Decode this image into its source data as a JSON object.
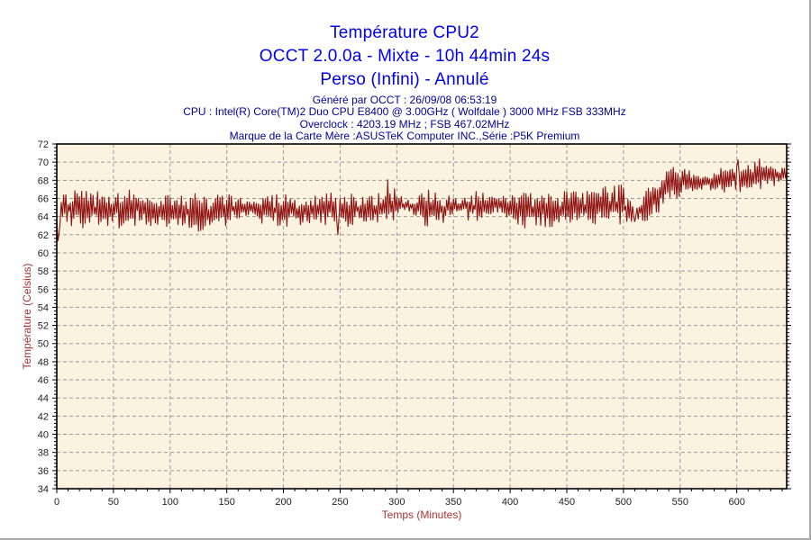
{
  "header": {
    "title_lines": [
      "Température CPU2",
      "OCCT 2.0.0a - Mixte - 10h 44min 24s",
      "Perso (Infini) - Annulé"
    ],
    "title_color": "#0000EE",
    "info_lines": [
      "Généré par OCCT : 26/09/08 06:53:19",
      "CPU : Intel(R) Core(TM)2 Duo CPU E8400 @ 3.00GHz ( Wolfdale ) 3000 MHz FSB 333MHz",
      "Overclock : 4203.19 MHz ; FSB 467.02MHz",
      "Marque de la Carte Mère :ASUSTeK Computer INC.,Série :P5K Premium"
    ],
    "info_color": "#000099"
  },
  "chart_data": {
    "type": "line",
    "title": "Température CPU2",
    "xlabel": "Temps (Minutes)",
    "ylabel": "Température (Celsius)",
    "xlim": [
      0,
      644
    ],
    "ylim": [
      34,
      72
    ],
    "x_ticks": [
      0,
      50,
      100,
      150,
      200,
      250,
      300,
      350,
      400,
      450,
      500,
      550,
      600
    ],
    "x_minor_step": 10,
    "y_tick_step": 2,
    "y_minor_step": 0.4,
    "grid_style": "dashed",
    "legend": "none",
    "colors": {
      "plot_bg": "#FBF3E0",
      "grid": "#999999",
      "plot_border": "#000000",
      "line": "#8E1212",
      "axis_label": "#AA3333",
      "tick_label": "#222222"
    },
    "series": {
      "name": "CPU2 temperature (°C) vs minutes, 1-min sampling, noisy oscillation",
      "stats": {
        "start_dip": 61.3,
        "plateau_mean": 65.0,
        "plateau_band": [
          62.3,
          67.8
        ],
        "rise_window_minutes": [
          513,
          548
        ],
        "final_mean": 68.4,
        "final_band": [
          66.4,
          70.4
        ],
        "max": 70.4,
        "end_value": 69.0
      },
      "envelope": [
        {
          "x": 0,
          "base": 64.8,
          "amp": 1.9
        },
        {
          "x": 20,
          "base": 64.9,
          "amp": 2.2
        },
        {
          "x": 45,
          "base": 64.7,
          "amp": 2.1
        },
        {
          "x": 70,
          "base": 64.9,
          "amp": 2.2
        },
        {
          "x": 85,
          "base": 64.5,
          "amp": 1.6
        },
        {
          "x": 105,
          "base": 64.6,
          "amp": 2.1
        },
        {
          "x": 125,
          "base": 64.4,
          "amp": 2.2
        },
        {
          "x": 145,
          "base": 64.6,
          "amp": 2.0
        },
        {
          "x": 158,
          "base": 65.0,
          "amp": 1.4
        },
        {
          "x": 172,
          "base": 64.8,
          "amp": 1.3
        },
        {
          "x": 188,
          "base": 64.7,
          "amp": 1.7
        },
        {
          "x": 205,
          "base": 64.6,
          "amp": 2.0
        },
        {
          "x": 220,
          "base": 64.8,
          "amp": 1.5
        },
        {
          "x": 240,
          "base": 64.9,
          "amp": 1.9
        },
        {
          "x": 258,
          "base": 64.7,
          "amp": 2.0
        },
        {
          "x": 272,
          "base": 64.8,
          "amp": 1.4
        },
        {
          "x": 288,
          "base": 65.0,
          "amp": 2.1
        },
        {
          "x": 300,
          "base": 65.2,
          "amp": 1.9
        },
        {
          "x": 306,
          "base": 65.3,
          "amp": 0.6
        },
        {
          "x": 314,
          "base": 65.1,
          "amp": 0.8
        },
        {
          "x": 324,
          "base": 64.9,
          "amp": 2.1
        },
        {
          "x": 338,
          "base": 64.8,
          "amp": 2.2
        },
        {
          "x": 350,
          "base": 65.2,
          "amp": 0.9
        },
        {
          "x": 358,
          "base": 65.1,
          "amp": 0.8
        },
        {
          "x": 368,
          "base": 65.0,
          "amp": 2.2
        },
        {
          "x": 380,
          "base": 65.0,
          "amp": 2.0
        },
        {
          "x": 388,
          "base": 65.3,
          "amp": 0.8
        },
        {
          "x": 397,
          "base": 65.1,
          "amp": 1.3
        },
        {
          "x": 408,
          "base": 64.8,
          "amp": 2.1
        },
        {
          "x": 424,
          "base": 64.7,
          "amp": 2.2
        },
        {
          "x": 440,
          "base": 64.8,
          "amp": 2.0
        },
        {
          "x": 455,
          "base": 65.0,
          "amp": 2.1
        },
        {
          "x": 470,
          "base": 65.1,
          "amp": 2.0
        },
        {
          "x": 484,
          "base": 65.2,
          "amp": 2.2
        },
        {
          "x": 497,
          "base": 65.4,
          "amp": 2.3
        },
        {
          "x": 506,
          "base": 64.6,
          "amp": 1.6
        },
        {
          "x": 513,
          "base": 64.4,
          "amp": 1.2
        },
        {
          "x": 518,
          "base": 65.0,
          "amp": 1.8
        },
        {
          "x": 526,
          "base": 65.8,
          "amp": 2.0
        },
        {
          "x": 534,
          "base": 66.8,
          "amp": 2.1
        },
        {
          "x": 542,
          "base": 67.5,
          "amp": 2.0
        },
        {
          "x": 550,
          "base": 67.9,
          "amp": 1.7
        },
        {
          "x": 558,
          "base": 68.0,
          "amp": 1.3
        },
        {
          "x": 566,
          "base": 67.7,
          "amp": 0.8
        },
        {
          "x": 575,
          "base": 67.8,
          "amp": 0.9
        },
        {
          "x": 583,
          "base": 68.1,
          "amp": 1.4
        },
        {
          "x": 593,
          "base": 68.2,
          "amp": 1.6
        },
        {
          "x": 604,
          "base": 68.4,
          "amp": 1.8
        },
        {
          "x": 614,
          "base": 68.5,
          "amp": 1.9
        },
        {
          "x": 624,
          "base": 68.6,
          "amp": 1.8
        },
        {
          "x": 634,
          "base": 68.5,
          "amp": 1.1
        },
        {
          "x": 644,
          "base": 68.9,
          "amp": 0.7
        }
      ],
      "overrides": [
        [
          0,
          63.8
        ],
        [
          1,
          61.3
        ],
        [
          2,
          62.1
        ],
        [
          3,
          63.4
        ],
        [
          4,
          65.6
        ],
        [
          248,
          62.0
        ],
        [
          292,
          68.1
        ],
        [
          510,
          63.4
        ],
        [
          601,
          70.3
        ],
        [
          620,
          70.4
        ],
        [
          644,
          69.0
        ]
      ]
    }
  }
}
